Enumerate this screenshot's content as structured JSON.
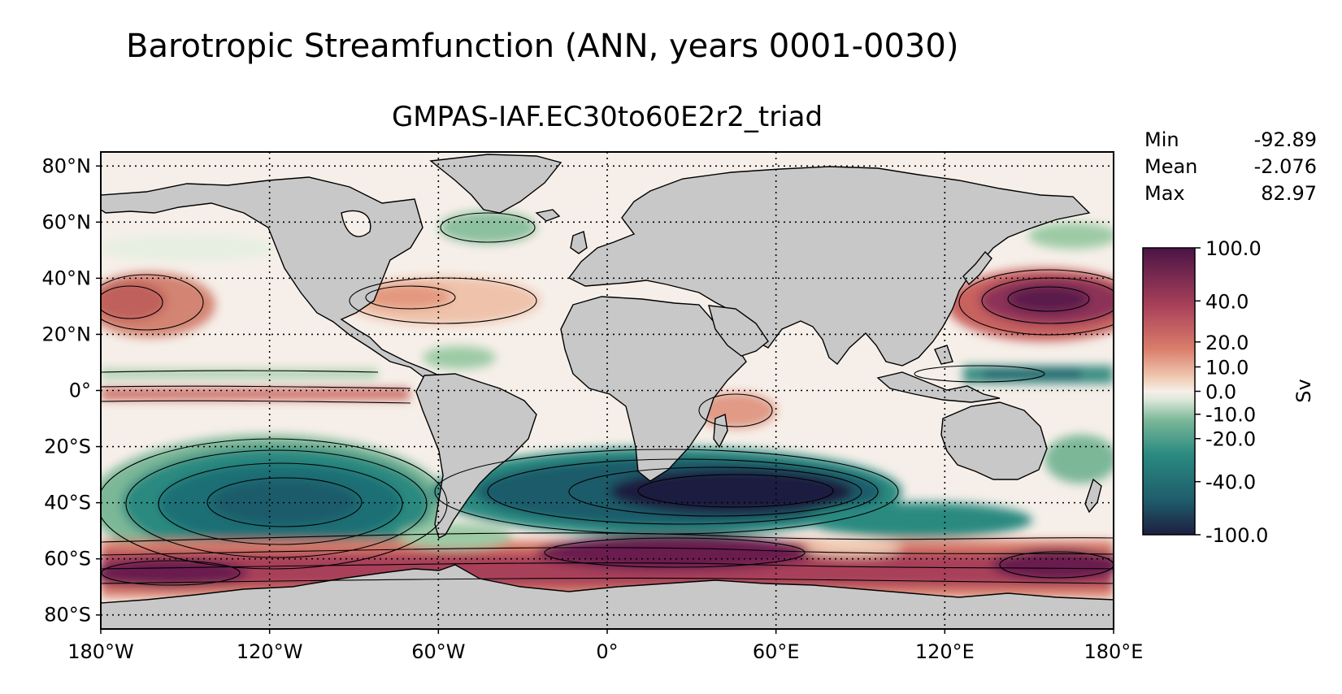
{
  "figure": {
    "title": "Barotropic Streamfunction (ANN, years 0001-0030)",
    "subtitle": "GMPAS-IAF.EC30to60E2r2_triad"
  },
  "map": {
    "projection": "plate-carree",
    "lon_range": [
      -180,
      180
    ],
    "lat_range": [
      -85,
      85
    ],
    "land_color": "#c8c8c8",
    "gridlines": "dotted",
    "lon_ticks": [
      {
        "value": -180,
        "label": "180°W"
      },
      {
        "value": -120,
        "label": "120°W"
      },
      {
        "value": -60,
        "label": "60°W"
      },
      {
        "value": 0,
        "label": "0°"
      },
      {
        "value": 60,
        "label": "60°E"
      },
      {
        "value": 120,
        "label": "120°E"
      },
      {
        "value": 180,
        "label": "180°E"
      }
    ],
    "lat_ticks": [
      {
        "value": 80,
        "label": "80°N"
      },
      {
        "value": 60,
        "label": "60°N"
      },
      {
        "value": 40,
        "label": "40°N"
      },
      {
        "value": 20,
        "label": "20°N"
      },
      {
        "value": 0,
        "label": "0°"
      },
      {
        "value": -20,
        "label": "20°S"
      },
      {
        "value": -40,
        "label": "40°S"
      },
      {
        "value": -60,
        "label": "60°S"
      },
      {
        "value": -80,
        "label": "80°S"
      }
    ]
  },
  "stats": [
    {
      "label": "Min",
      "value": "-92.89"
    },
    {
      "label": "Mean",
      "value": "-2.076"
    },
    {
      "label": "Max",
      "value": "82.97"
    }
  ],
  "colorbar": {
    "unit": "Sv",
    "colors": [
      "#1d1f3f",
      "#1f5c6b",
      "#2a8a80",
      "#7bb798",
      "#dbe8d8",
      "#f6efe9",
      "#f0c8b0",
      "#d97c6a",
      "#a8405a",
      "#4a1446"
    ],
    "ticks": [
      {
        "value": 100.0,
        "label": "100.0"
      },
      {
        "value": 40.0,
        "label": "40.0"
      },
      {
        "value": 20.0,
        "label": "20.0"
      },
      {
        "value": 10.0,
        "label": "10.0"
      },
      {
        "value": 0.0,
        "label": "0.0"
      },
      {
        "value": -10.0,
        "label": "-10.0"
      },
      {
        "value": -20.0,
        "label": "-20.0"
      },
      {
        "value": -40.0,
        "label": "-40.0"
      },
      {
        "value": -100.0,
        "label": "-100.0"
      }
    ]
  }
}
